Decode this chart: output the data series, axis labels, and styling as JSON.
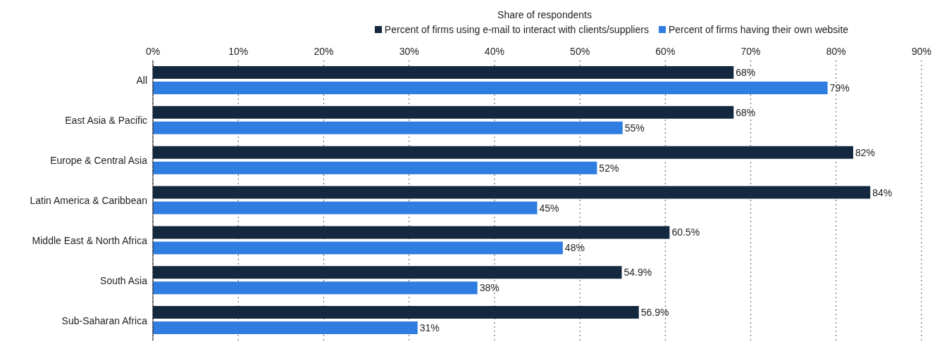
{
  "chart_data": {
    "type": "bar",
    "orientation": "horizontal",
    "xlabel": "Share of respondents",
    "categories": [
      "All",
      "East Asia & Pacific",
      "Europe & Central Asia",
      "Latin America & Caribbean",
      "Middle East & North Africa",
      "South Asia",
      "Sub-Saharan Africa"
    ],
    "series": [
      {
        "name": "Percent of firms using e-mail to interact with clients/suppliers",
        "color": "#14283f",
        "values": [
          68,
          68,
          82,
          84,
          60.5,
          54.9,
          56.9
        ],
        "value_labels": [
          "68%",
          "68%",
          "82%",
          "84%",
          "60.5%",
          "54.9%",
          "56.9%"
        ]
      },
      {
        "name": "Percent of firms having their own website",
        "color": "#2f7de1",
        "values": [
          79,
          55,
          52,
          45,
          48,
          38,
          31
        ],
        "value_labels": [
          "79%",
          "55%",
          "52%",
          "45%",
          "48%",
          "38%",
          "31%"
        ]
      }
    ],
    "xlim": [
      0,
      90
    ],
    "xticks": [
      {
        "value": 0,
        "label": "0%"
      },
      {
        "value": 10,
        "label": "10%"
      },
      {
        "value": 20,
        "label": "20%"
      },
      {
        "value": 30,
        "label": "30%"
      },
      {
        "value": 40,
        "label": "40%"
      },
      {
        "value": 50,
        "label": "50%"
      },
      {
        "value": 60,
        "label": "60%"
      },
      {
        "value": 70,
        "label": "70%"
      },
      {
        "value": 80,
        "label": "80%"
      },
      {
        "value": 90,
        "label": "90%"
      }
    ],
    "grid": "x",
    "legend": "top"
  }
}
